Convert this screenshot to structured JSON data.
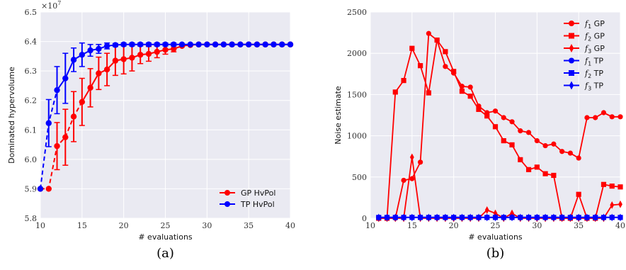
{
  "colors": {
    "gp": "#ff0000",
    "tp": "#0000ff",
    "plot_bg": "#eaeaf2",
    "grid": "#ffffff"
  },
  "chart_data": [
    {
      "type": "line",
      "panel_caption": "(a)",
      "xlabel": "# evaluations",
      "ylabel": "Dominated hypervolume",
      "y_multiplier_label": "×10",
      "y_multiplier_exponent": "7",
      "xlim": [
        10,
        40
      ],
      "ylim": [
        5.8,
        6.5
      ],
      "xticks": [
        10,
        15,
        20,
        25,
        30,
        35,
        40
      ],
      "yticks": [
        5.8,
        5.9,
        6.0,
        6.1,
        6.2,
        6.3,
        6.4,
        6.5
      ],
      "xtick_labels": [
        "10",
        "15",
        "20",
        "25",
        "30",
        "35",
        "40"
      ],
      "ytick_labels": [
        "5.8",
        "5.9",
        "6.0",
        "6.1",
        "6.2",
        "6.3",
        "6.4",
        "6.5"
      ],
      "grid": true,
      "legend": "bottom-right",
      "series": [
        {
          "name": "GP HvPol",
          "color": "#ff0000",
          "marker": "circle",
          "error_bars": true,
          "x": [
            10,
            11,
            12,
            13,
            14,
            15,
            16,
            17,
            18,
            19,
            20,
            21,
            22,
            23,
            24,
            25,
            26,
            27,
            28,
            29,
            30,
            31,
            32,
            33,
            34,
            35,
            36,
            37,
            38,
            39,
            40
          ],
          "y": [
            5.9,
            5.9,
            6.045,
            6.075,
            6.145,
            6.195,
            6.243,
            6.292,
            6.305,
            6.335,
            6.34,
            6.345,
            6.355,
            6.358,
            6.365,
            6.372,
            6.375,
            6.385,
            6.388,
            6.39,
            6.39,
            6.39,
            6.39,
            6.39,
            6.39,
            6.39,
            6.39,
            6.39,
            6.39,
            6.39,
            6.39
          ],
          "err": [
            0,
            0,
            0.08,
            0.095,
            0.085,
            0.08,
            0.065,
            0.055,
            0.055,
            0.05,
            0.05,
            0.045,
            0.03,
            0.025,
            0.02,
            0.015,
            0.01,
            0,
            0,
            0,
            0,
            0,
            0,
            0,
            0,
            0,
            0,
            0,
            0,
            0,
            0
          ]
        },
        {
          "name": "TP HvPol",
          "color": "#0000ff",
          "marker": "circle",
          "error_bars": true,
          "x": [
            10,
            11,
            12,
            13,
            14,
            15,
            16,
            17,
            18,
            19,
            20,
            21,
            22,
            23,
            24,
            25,
            26,
            27,
            28,
            29,
            30,
            31,
            32,
            33,
            34,
            35,
            36,
            37,
            38,
            39,
            40
          ],
          "y": [
            5.9,
            6.123,
            6.235,
            6.275,
            6.338,
            6.355,
            6.37,
            6.375,
            6.385,
            6.388,
            6.39,
            6.39,
            6.39,
            6.39,
            6.39,
            6.39,
            6.39,
            6.39,
            6.39,
            6.39,
            6.39,
            6.39,
            6.39,
            6.39,
            6.39,
            6.39,
            6.39,
            6.39,
            6.39,
            6.39,
            6.39
          ],
          "err": [
            0,
            0.08,
            0.08,
            0.085,
            0.04,
            0.04,
            0.02,
            0.015,
            0.01,
            0.005,
            0.005,
            0.005,
            0.005,
            0.005,
            0.005,
            0.005,
            0.005,
            0,
            0,
            0,
            0,
            0,
            0,
            0,
            0,
            0,
            0,
            0,
            0,
            0,
            0
          ]
        }
      ]
    },
    {
      "type": "line",
      "panel_caption": "(b)",
      "xlabel": "# evaluations",
      "ylabel": "Noise estimate",
      "xlim": [
        10,
        40
      ],
      "ylim": [
        0,
        2500
      ],
      "xticks": [
        10,
        15,
        20,
        25,
        30,
        35,
        40
      ],
      "yticks": [
        0,
        500,
        1000,
        1500,
        2000,
        2500
      ],
      "xtick_labels": [
        "10",
        "15",
        "20",
        "25",
        "30",
        "35",
        "40"
      ],
      "ytick_labels": [
        "0",
        "500",
        "1000",
        "1500",
        "2000",
        "2500"
      ],
      "grid": true,
      "legend": "top-right",
      "series": [
        {
          "name": "f",
          "subscript": "1",
          "suffix": " GP",
          "color": "#ff0000",
          "marker": "circle",
          "x": [
            11,
            12,
            13,
            14,
            15,
            16,
            17,
            18,
            19,
            20,
            21,
            22,
            23,
            24,
            25,
            26,
            27,
            28,
            29,
            30,
            31,
            32,
            33,
            34,
            35,
            36,
            37,
            38,
            39,
            40
          ],
          "y": [
            0,
            0,
            0,
            460,
            480,
            680,
            2240,
            2160,
            1840,
            1760,
            1600,
            1590,
            1360,
            1280,
            1300,
            1220,
            1170,
            1060,
            1040,
            940,
            880,
            900,
            810,
            790,
            730,
            1220,
            1220,
            1280,
            1230,
            1230
          ]
        },
        {
          "name": "f",
          "subscript": "2",
          "suffix": " GP",
          "color": "#ff0000",
          "marker": "square",
          "x": [
            11,
            12,
            13,
            14,
            15,
            16,
            17,
            18,
            19,
            20,
            21,
            22,
            23,
            24,
            25,
            26,
            27,
            28,
            29,
            30,
            31,
            32,
            33,
            34,
            35,
            36,
            37,
            38,
            39,
            40
          ],
          "y": [
            0,
            0,
            1530,
            1670,
            2060,
            1850,
            1520,
            2160,
            2020,
            1780,
            1540,
            1480,
            1320,
            1240,
            1110,
            940,
            890,
            710,
            590,
            620,
            540,
            520,
            0,
            0,
            290,
            0,
            0,
            410,
            390,
            380
          ]
        },
        {
          "name": "f",
          "subscript": "3",
          "suffix": " GP",
          "color": "#ff0000",
          "marker": "diamond",
          "x": [
            11,
            12,
            13,
            14,
            15,
            16,
            17,
            18,
            19,
            20,
            21,
            22,
            23,
            24,
            25,
            26,
            27,
            28,
            29,
            30,
            31,
            32,
            33,
            34,
            35,
            36,
            37,
            38,
            39,
            40
          ],
          "y": [
            0,
            0,
            0,
            0,
            740,
            0,
            0,
            0,
            0,
            0,
            0,
            0,
            0,
            100,
            60,
            0,
            60,
            0,
            0,
            0,
            0,
            0,
            0,
            0,
            0,
            0,
            0,
            0,
            160,
            170
          ]
        },
        {
          "name": "f",
          "subscript": "1",
          "suffix": " TP",
          "color": "#0000ff",
          "marker": "circle",
          "x": [
            11,
            12,
            13,
            14,
            15,
            16,
            17,
            18,
            19,
            20,
            21,
            22,
            23,
            24,
            25,
            26,
            27,
            28,
            29,
            30,
            31,
            32,
            33,
            34,
            35,
            36,
            37,
            38,
            39,
            40
          ],
          "y": [
            10,
            10,
            10,
            10,
            10,
            10,
            10,
            10,
            10,
            10,
            10,
            10,
            10,
            10,
            10,
            10,
            10,
            10,
            10,
            10,
            10,
            10,
            10,
            10,
            10,
            10,
            10,
            10,
            10,
            10
          ]
        },
        {
          "name": "f",
          "subscript": "2",
          "suffix": " TP",
          "color": "#0000ff",
          "marker": "square",
          "x": [
            11,
            12,
            13,
            14,
            15,
            16,
            17,
            18,
            19,
            20,
            21,
            22,
            23,
            24,
            25,
            26,
            27,
            28,
            29,
            30,
            31,
            32,
            33,
            34,
            35,
            36,
            37,
            38,
            39,
            40
          ],
          "y": [
            10,
            10,
            10,
            10,
            10,
            10,
            10,
            10,
            10,
            10,
            10,
            10,
            10,
            10,
            10,
            10,
            10,
            10,
            10,
            10,
            10,
            10,
            10,
            10,
            10,
            10,
            10,
            10,
            10,
            10
          ]
        },
        {
          "name": "f",
          "subscript": "3",
          "suffix": " TP",
          "color": "#0000ff",
          "marker": "diamond",
          "x": [
            11,
            12,
            13,
            14,
            15,
            16,
            17,
            18,
            19,
            20,
            21,
            22,
            23,
            24,
            25,
            26,
            27,
            28,
            29,
            30,
            31,
            32,
            33,
            34,
            35,
            36,
            37,
            38,
            39,
            40
          ],
          "y": [
            10,
            10,
            10,
            10,
            10,
            10,
            10,
            10,
            10,
            10,
            10,
            10,
            10,
            10,
            10,
            10,
            10,
            10,
            10,
            10,
            10,
            10,
            10,
            10,
            10,
            10,
            10,
            10,
            10,
            10
          ]
        }
      ]
    }
  ]
}
